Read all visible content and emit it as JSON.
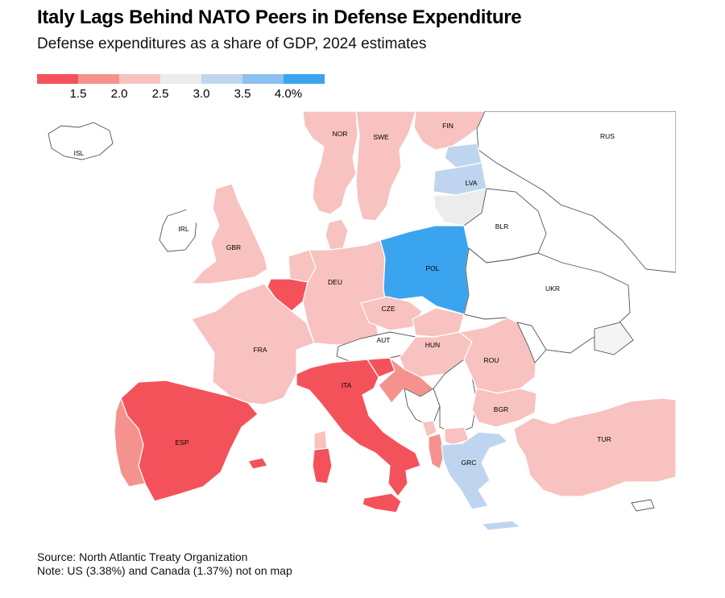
{
  "title": "Italy Lags Behind NATO Peers in Defense Expenditure",
  "subtitle": "Defense expenditures as a share of GDP, 2024 estimates",
  "legend": {
    "colors": [
      "#f4525a",
      "#f5928d",
      "#f7c2bf",
      "#ececec",
      "#bfd5ef",
      "#8cc0ef",
      "#3ba4ef"
    ],
    "labels": [
      "1.5",
      "2.0",
      "2.5",
      "3.0",
      "3.5",
      "4.0%"
    ]
  },
  "map": {
    "no_data_color": "#ffffff",
    "countries": [
      {
        "code": "ISL",
        "color": "#ffffff"
      },
      {
        "code": "NOR",
        "color": "#f7c2bf"
      },
      {
        "code": "SWE",
        "color": "#f7c2bf"
      },
      {
        "code": "FIN",
        "color": "#f7c2bf"
      },
      {
        "code": "RUS",
        "color": "#ffffff"
      },
      {
        "code": "LVA",
        "color": "#bfd5ef"
      },
      {
        "code": "IRL",
        "color": "#ffffff"
      },
      {
        "code": "GBR",
        "color": "#f7c2bf"
      },
      {
        "code": "BLR",
        "color": "#ffffff"
      },
      {
        "code": "POL",
        "color": "#3ba4ef"
      },
      {
        "code": "DEU",
        "color": "#f7c2bf"
      },
      {
        "code": "UKR",
        "color": "#ffffff"
      },
      {
        "code": "CZE",
        "color": "#f7c2bf"
      },
      {
        "code": "FRA",
        "color": "#f7c2bf"
      },
      {
        "code": "AUT",
        "color": "#ffffff"
      },
      {
        "code": "HUN",
        "color": "#f7c2bf"
      },
      {
        "code": "ROU",
        "color": "#f7c2bf"
      },
      {
        "code": "ITA",
        "color": "#f4525a"
      },
      {
        "code": "BGR",
        "color": "#f7c2bf"
      },
      {
        "code": "ESP",
        "color": "#f4525a"
      },
      {
        "code": "TUR",
        "color": "#f7c2bf"
      },
      {
        "code": "GRC",
        "color": "#bfd5ef"
      }
    ]
  },
  "footer": {
    "source": "Source: North Atlantic Treaty Organization",
    "note": "Note: US (3.38%) and Canada (1.37%) not on map"
  }
}
